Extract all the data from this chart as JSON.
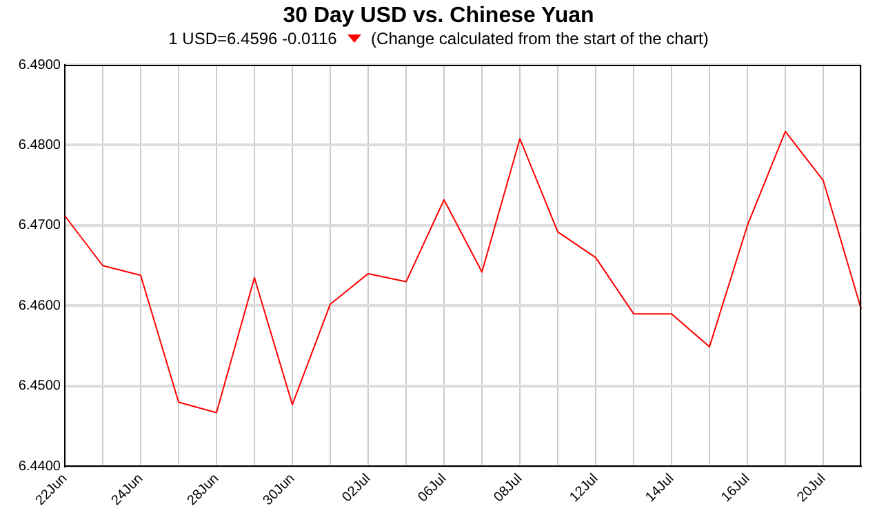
{
  "chart_data": {
    "type": "line",
    "title": "30 Day USD vs. Chinese Yuan",
    "subtitle": "1 USD=6.4596  -0.0116",
    "annotations": [
      "(Change calculated from the start of the chart)"
    ],
    "categories": [
      "22Jun",
      null,
      "24Jun",
      null,
      "28Jun",
      null,
      "30Jun",
      null,
      "02Jul",
      null,
      "06Jul",
      null,
      "08Jul",
      null,
      "12Jul",
      null,
      "14Jul",
      null,
      "16Jul",
      null,
      "20Jul",
      null
    ],
    "series": [
      {
        "color": "#ff0000",
        "values": [
          6.4712,
          6.465,
          6.4638,
          6.448,
          6.4467,
          6.4635,
          6.4477,
          6.4602,
          6.464,
          6.463,
          6.4732,
          6.4642,
          6.4808,
          6.4692,
          6.466,
          6.459,
          6.459,
          6.4549,
          6.47,
          6.4817,
          6.4756,
          6.4596
        ]
      }
    ],
    "ylim": [
      6.44,
      6.49
    ],
    "yticks": [
      {
        "value": 6.44,
        "label": "6.4400"
      },
      {
        "value": 6.45,
        "label": "6.4500"
      },
      {
        "value": 6.46,
        "label": "6.4600"
      },
      {
        "value": 6.47,
        "label": "6.4700"
      },
      {
        "value": 6.48,
        "label": "6.4800"
      },
      {
        "value": 6.49,
        "label": "6.4900"
      }
    ],
    "grid": true,
    "legend": false,
    "marker": "none",
    "line_style": "solid"
  }
}
